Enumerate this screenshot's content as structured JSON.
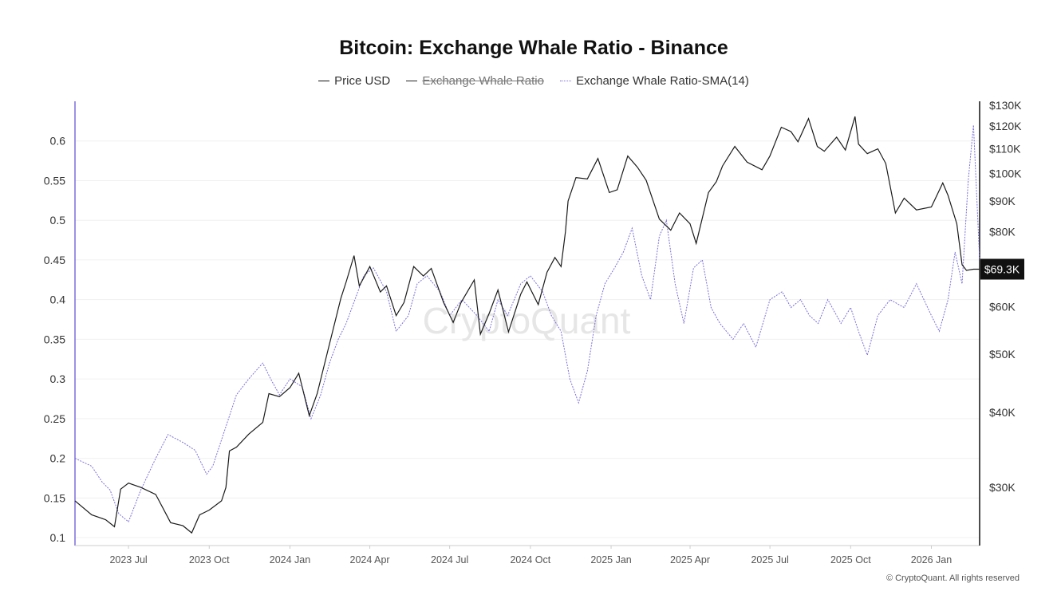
{
  "chart_data": {
    "type": "line",
    "title": "Bitcoin: Exchange Whale Ratio - Binance",
    "legend": {
      "placement": "top-center",
      "items": [
        {
          "label": "Price USD",
          "hidden": false
        },
        {
          "label": "Exchange Whale Ratio",
          "hidden": true
        },
        {
          "label": "Exchange Whale Ratio-SMA(14)",
          "hidden": false
        }
      ]
    },
    "x_ticks": [
      "2023 Jul",
      "2023 Oct",
      "2024 Jan",
      "2024 Apr",
      "2024 Jul",
      "2024 Oct",
      "2025 Jan",
      "2025 Apr",
      "2025 Jul",
      "2025 Oct",
      "2026 Jan"
    ],
    "x_range": [
      "2023-05-01",
      "2026-02-25"
    ],
    "y_left": {
      "ticks": [
        "0.1",
        "0.15",
        "0.2",
        "0.25",
        "0.3",
        "0.35",
        "0.4",
        "0.45",
        "0.5",
        "0.55",
        "0.6"
      ],
      "range": [
        0.09,
        0.65
      ]
    },
    "y_right": {
      "scale": "log",
      "ticks": [
        "$30K",
        "$40K",
        "$50K",
        "$60K",
        "$80K",
        "$90K",
        "$100K",
        "$110K",
        "$120K",
        "$130K"
      ],
      "tick_values": [
        30000,
        40000,
        50000,
        60000,
        80000,
        90000,
        100000,
        110000,
        120000,
        130000
      ],
      "range": [
        24000,
        132000
      ]
    },
    "current_price_label": "$69.3K",
    "current_price_value": 69300,
    "grid": true,
    "watermark": "CryptoQuant",
    "series": [
      {
        "name": "Price USD",
        "axis": "right",
        "color": "#111111",
        "x": [
          "2023-05-01",
          "2023-05-20",
          "2023-06-05",
          "2023-06-15",
          "2023-06-22",
          "2023-07-01",
          "2023-07-15",
          "2023-08-01",
          "2023-08-18",
          "2023-09-01",
          "2023-09-11",
          "2023-09-20",
          "2023-10-01",
          "2023-10-15",
          "2023-10-20",
          "2023-10-24",
          "2023-11-01",
          "2023-11-15",
          "2023-12-01",
          "2023-12-08",
          "2023-12-20",
          "2024-01-01",
          "2024-01-11",
          "2024-01-23",
          "2024-02-01",
          "2024-02-15",
          "2024-02-28",
          "2024-03-05",
          "2024-03-14",
          "2024-03-20",
          "2024-04-01",
          "2024-04-13",
          "2024-04-20",
          "2024-05-01",
          "2024-05-10",
          "2024-05-21",
          "2024-06-01",
          "2024-06-10",
          "2024-06-24",
          "2024-07-05",
          "2024-07-14",
          "2024-07-29",
          "2024-08-05",
          "2024-08-15",
          "2024-08-25",
          "2024-09-06",
          "2024-09-20",
          "2024-09-27",
          "2024-10-10",
          "2024-10-20",
          "2024-10-29",
          "2024-11-05",
          "2024-11-10",
          "2024-11-13",
          "2024-11-22",
          "2024-12-05",
          "2024-12-17",
          "2024-12-30",
          "2025-01-08",
          "2025-01-20",
          "2025-01-31",
          "2025-02-10",
          "2025-02-25",
          "2025-03-10",
          "2025-03-20",
          "2025-04-01",
          "2025-04-08",
          "2025-04-22",
          "2025-05-01",
          "2025-05-08",
          "2025-05-22",
          "2025-06-05",
          "2025-06-22",
          "2025-07-01",
          "2025-07-14",
          "2025-07-25",
          "2025-08-02",
          "2025-08-14",
          "2025-08-24",
          "2025-09-01",
          "2025-09-15",
          "2025-09-25",
          "2025-10-06",
          "2025-10-10",
          "2025-10-20",
          "2025-11-01",
          "2025-11-10",
          "2025-11-21",
          "2025-12-01",
          "2025-12-15",
          "2026-01-01",
          "2026-01-14",
          "2026-01-20",
          "2026-01-30",
          "2026-02-05",
          "2026-02-10",
          "2026-02-18",
          "2026-02-25"
        ],
        "y": [
          28500,
          27000,
          26500,
          25800,
          29800,
          30500,
          30000,
          29200,
          26200,
          25900,
          25200,
          27000,
          27500,
          28500,
          30000,
          34500,
          35000,
          36800,
          38500,
          43000,
          42500,
          44000,
          46500,
          39500,
          43000,
          52000,
          62000,
          66000,
          73000,
          65000,
          70000,
          63500,
          65000,
          58000,
          61000,
          70000,
          67500,
          69500,
          61000,
          56500,
          61000,
          66500,
          54000,
          58500,
          64000,
          54500,
          63000,
          66000,
          60500,
          68500,
          72500,
          70000,
          80000,
          90000,
          98500,
          98000,
          106000,
          93000,
          94000,
          107000,
          102500,
          97500,
          84000,
          80500,
          86000,
          82500,
          76500,
          93000,
          97000,
          103000,
          111000,
          104500,
          101500,
          107000,
          119500,
          117500,
          113000,
          123500,
          111000,
          109000,
          115000,
          109500,
          124500,
          112000,
          108000,
          110000,
          104000,
          86000,
          91000,
          87000,
          88000,
          96500,
          92000,
          82500,
          70500,
          69000,
          69300,
          69300
        ]
      },
      {
        "name": "Exchange Whale Ratio-SMA(14)",
        "axis": "left",
        "color": "#7b6fd8",
        "x": [
          "2023-05-01",
          "2023-05-20",
          "2023-06-01",
          "2023-06-10",
          "2023-06-20",
          "2023-07-01",
          "2023-07-15",
          "2023-08-01",
          "2023-08-15",
          "2023-09-01",
          "2023-09-15",
          "2023-09-28",
          "2023-10-05",
          "2023-10-20",
          "2023-11-01",
          "2023-11-15",
          "2023-12-01",
          "2023-12-10",
          "2023-12-20",
          "2024-01-01",
          "2024-01-15",
          "2024-01-25",
          "2024-02-05",
          "2024-02-15",
          "2024-02-25",
          "2024-03-05",
          "2024-03-15",
          "2024-03-25",
          "2024-04-05",
          "2024-04-20",
          "2024-05-01",
          "2024-05-15",
          "2024-05-25",
          "2024-06-05",
          "2024-06-20",
          "2024-07-01",
          "2024-07-15",
          "2024-08-01",
          "2024-08-15",
          "2024-08-25",
          "2024-09-05",
          "2024-09-20",
          "2024-10-01",
          "2024-10-15",
          "2024-10-25",
          "2024-11-05",
          "2024-11-15",
          "2024-11-25",
          "2024-12-05",
          "2024-12-15",
          "2024-12-25",
          "2025-01-05",
          "2025-01-15",
          "2025-01-25",
          "2025-02-05",
          "2025-02-15",
          "2025-02-25",
          "2025-03-05",
          "2025-03-15",
          "2025-03-25",
          "2025-04-05",
          "2025-04-15",
          "2025-04-25",
          "2025-05-05",
          "2025-05-20",
          "2025-06-01",
          "2025-06-15",
          "2025-07-01",
          "2025-07-15",
          "2025-07-25",
          "2025-08-05",
          "2025-08-15",
          "2025-08-25",
          "2025-09-05",
          "2025-09-20",
          "2025-10-01",
          "2025-10-10",
          "2025-10-20",
          "2025-11-01",
          "2025-11-15",
          "2025-12-01",
          "2025-12-15",
          "2026-01-01",
          "2026-01-10",
          "2026-01-20",
          "2026-01-28",
          "2026-02-05",
          "2026-02-12",
          "2026-02-18",
          "2026-02-25"
        ],
        "y": [
          0.2,
          0.19,
          0.17,
          0.16,
          0.13,
          0.12,
          0.16,
          0.2,
          0.23,
          0.22,
          0.21,
          0.18,
          0.19,
          0.24,
          0.28,
          0.3,
          0.32,
          0.3,
          0.28,
          0.3,
          0.29,
          0.25,
          0.28,
          0.32,
          0.35,
          0.37,
          0.4,
          0.43,
          0.44,
          0.41,
          0.36,
          0.38,
          0.42,
          0.43,
          0.41,
          0.38,
          0.4,
          0.38,
          0.36,
          0.4,
          0.38,
          0.42,
          0.43,
          0.41,
          0.38,
          0.36,
          0.3,
          0.27,
          0.31,
          0.38,
          0.42,
          0.44,
          0.46,
          0.49,
          0.43,
          0.4,
          0.48,
          0.5,
          0.42,
          0.37,
          0.44,
          0.45,
          0.39,
          0.37,
          0.35,
          0.37,
          0.34,
          0.4,
          0.41,
          0.39,
          0.4,
          0.38,
          0.37,
          0.4,
          0.37,
          0.39,
          0.36,
          0.33,
          0.38,
          0.4,
          0.39,
          0.42,
          0.38,
          0.36,
          0.4,
          0.46,
          0.42,
          0.55,
          0.62,
          0.45
        ]
      }
    ]
  },
  "footer": {
    "copyright": "© CryptoQuant. All rights reserved"
  }
}
